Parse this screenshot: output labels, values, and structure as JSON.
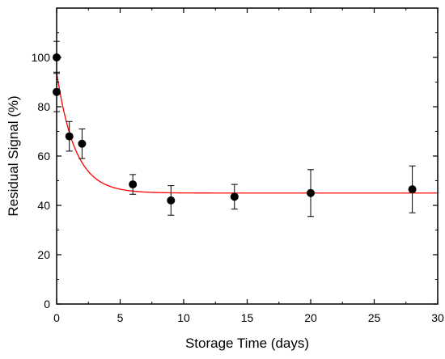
{
  "chart_data": {
    "type": "scatter",
    "title": "",
    "xlabel": "Storage Time (days)",
    "ylabel": "Residual Signal (%)",
    "xlim": [
      0,
      30
    ],
    "ylim": [
      0,
      120
    ],
    "x_ticks": [
      0,
      5,
      10,
      15,
      20,
      25,
      30
    ],
    "y_ticks": [
      0,
      20,
      40,
      60,
      80,
      100
    ],
    "x_tick_labels": [
      "0",
      "5",
      "10",
      "15",
      "20",
      "25",
      "30"
    ],
    "y_tick_labels": [
      "0",
      "20",
      "40",
      "60",
      "80",
      "100"
    ],
    "grid": false,
    "legend": "none",
    "series": [
      {
        "kind": "points-with-error-bars",
        "color": "#000000",
        "x": [
          0,
          0,
          1,
          2,
          6,
          9,
          14,
          20,
          28
        ],
        "y": [
          100,
          86,
          68,
          65,
          48.5,
          42,
          43.5,
          45,
          46.5
        ],
        "err": [
          6.5,
          8,
          6,
          6,
          4,
          6,
          5,
          9.5,
          9.5
        ]
      },
      {
        "kind": "fit-curve",
        "color": "#ff0000",
        "model": "exponential decay",
        "y0": 45,
        "A": 49,
        "tau": 1.45
      }
    ]
  }
}
